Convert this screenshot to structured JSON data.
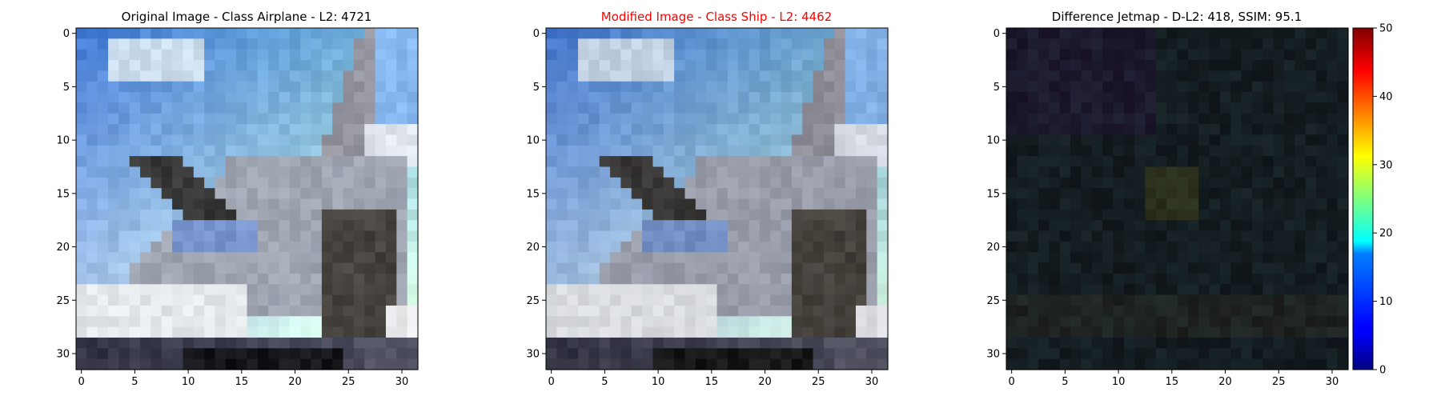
{
  "chart_data": [
    {
      "type": "heatmap",
      "title": "Original Image - Class Airplane - L2: 4721",
      "title_color": "#000000",
      "x_ticks": [
        "0",
        "5",
        "10",
        "15",
        "20",
        "25",
        "30"
      ],
      "y_ticks": [
        "0",
        "5",
        "10",
        "15",
        "20",
        "25",
        "30"
      ],
      "xlim": [
        -0.5,
        31.5
      ],
      "ylim": [
        31.5,
        -0.5
      ],
      "grid": false,
      "content": "32x32 RGB photograph of a grey fighter jet against a blue sky with white clouds"
    },
    {
      "type": "heatmap",
      "title": "Modified Image - Class Ship - L2: 4462",
      "title_color": "#ff0000",
      "x_ticks": [
        "0",
        "5",
        "10",
        "15",
        "20",
        "25",
        "30"
      ],
      "y_ticks": [
        "0",
        "5",
        "10",
        "15",
        "20",
        "25",
        "30"
      ],
      "xlim": [
        -0.5,
        31.5
      ],
      "ylim": [
        31.5,
        -0.5
      ],
      "grid": false,
      "content": "32x32 RGB photograph of the same jet, slightly perturbed, marginally darker and desaturated"
    },
    {
      "type": "heatmap",
      "title": "Difference Jetmap - D-L2: 418, SSIM: 95.1",
      "title_color": "#000000",
      "x_ticks": [
        "0",
        "5",
        "10",
        "15",
        "20",
        "25",
        "30"
      ],
      "y_ticks": [
        "0",
        "5",
        "10",
        "15",
        "20",
        "25",
        "30"
      ],
      "xlim": [
        -0.5,
        31.5
      ],
      "ylim": [
        31.5,
        -0.5
      ],
      "grid": false,
      "colormap": "jet",
      "colorbar": {
        "min": 0,
        "max": 50,
        "ticks": [
          "0",
          "10",
          "20",
          "30",
          "40",
          "50"
        ]
      },
      "content": "near-black per-pixel difference map with faint teal, purple and olive tints"
    }
  ]
}
